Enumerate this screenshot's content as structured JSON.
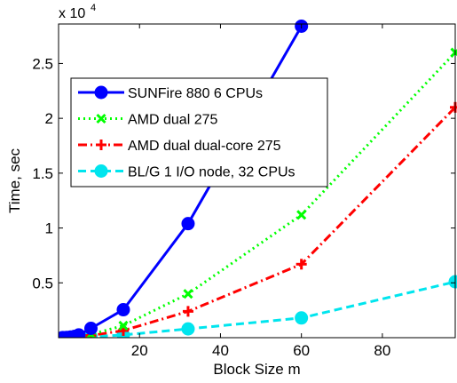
{
  "chart_data": {
    "type": "line",
    "title": "",
    "xlabel": "Block Size m",
    "ylabel": "Time, sec",
    "y_multiplier_label": "x 10",
    "y_multiplier_exponent": "4",
    "xlim": [
      0,
      98
    ],
    "ylim": [
      0,
      28600
    ],
    "xticks": [
      20,
      40,
      60,
      80
    ],
    "xtick_labels": [
      "20",
      "40",
      "60",
      "80"
    ],
    "yticks": [
      5000,
      10000,
      15000,
      20000,
      25000
    ],
    "ytick_labels": [
      "0.5",
      "1",
      "1.5",
      "2",
      "2.5"
    ],
    "grid": false,
    "legend_position": "upper-left",
    "series": [
      {
        "name": "SUNFire 880 6 CPUs",
        "color": "#0000ff",
        "line_style": "solid",
        "marker": "circle",
        "x": [
          1,
          2,
          3,
          4,
          5,
          8,
          16,
          32,
          60
        ],
        "y": [
          10,
          25,
          60,
          120,
          250,
          850,
          2550,
          10400,
          28400
        ]
      },
      {
        "name": "AMD dual 275",
        "color": "#00ff00",
        "line_style": "dotted",
        "marker": "x",
        "x": [
          1,
          2,
          3,
          4,
          5,
          8,
          16,
          32,
          60,
          98
        ],
        "y": [
          5,
          12,
          30,
          60,
          100,
          300,
          1100,
          4000,
          11200,
          26000
        ]
      },
      {
        "name": "AMD dual dual-core 275",
        "color": "#ff0000",
        "line_style": "dashdot",
        "marker": "plus",
        "x": [
          1,
          2,
          3,
          4,
          5,
          8,
          16,
          32,
          60,
          98
        ],
        "y": [
          3,
          8,
          20,
          40,
          70,
          200,
          650,
          2400,
          6700,
          21000
        ]
      },
      {
        "name": "BL/G 1 I/O node, 32 CPUs",
        "color": "#00e5ee",
        "line_style": "dashed",
        "marker": "circle",
        "x": [
          1,
          2,
          3,
          4,
          5,
          8,
          16,
          32,
          60,
          98
        ],
        "y": [
          2,
          5,
          10,
          20,
          30,
          80,
          250,
          800,
          1800,
          5100
        ]
      }
    ]
  }
}
